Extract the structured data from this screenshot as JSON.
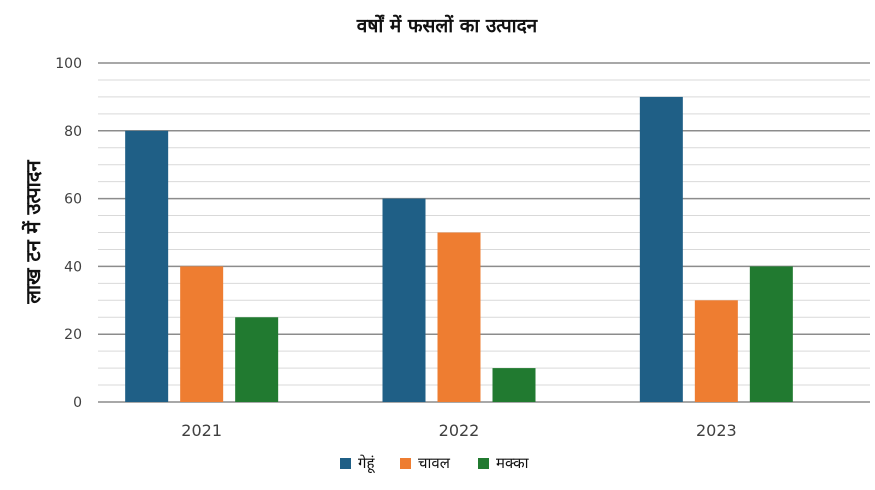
{
  "chart_data": {
    "type": "bar",
    "title": "वर्षों में फसलों का उत्पादन",
    "xlabel": "",
    "ylabel": "लाख टन में उत्पादन",
    "categories": [
      "2021",
      "2022",
      "2023"
    ],
    "series": [
      {
        "name": "गेहूं",
        "values": [
          80,
          60,
          90
        ],
        "color": "#1f5f86"
      },
      {
        "name": "चावल",
        "values": [
          40,
          50,
          30
        ],
        "color": "#ee7d31"
      },
      {
        "name": "मक्का",
        "values": [
          25,
          10,
          40
        ],
        "color": "#217a30"
      }
    ],
    "ylim": [
      0,
      100
    ],
    "yticks": [
      0,
      20,
      40,
      60,
      80,
      100
    ],
    "grid": true,
    "legend_position": "bottom"
  }
}
